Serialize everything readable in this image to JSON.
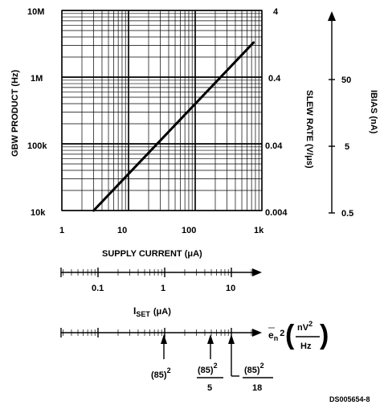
{
  "chart_data": {
    "type": "line",
    "xlabel": "SUPPLY CURRENT (μA)",
    "x_scale": "log",
    "xlim": [
      1,
      1000
    ],
    "x_ticks": [
      "1",
      "10",
      "100",
      "1k"
    ],
    "ylabel_left": "GBW PRODUCT (Hz)",
    "y_scale": "log",
    "ylim": [
      10000,
      10000000
    ],
    "y_ticks": [
      "10k",
      "100k",
      "1M",
      "10M"
    ],
    "ylabel_right": "SLEW RATE (V/μs)",
    "y_right_ticks": [
      "0.004",
      "0.04",
      "0.4",
      "4"
    ],
    "ylabel_far_right": "IBIAS (nA)",
    "y_far_right_ticks": [
      "0.5",
      "5",
      "50"
    ],
    "grid": true,
    "series": [
      {
        "x": [
          3,
          750
        ],
        "y": [
          10000,
          3300000
        ]
      }
    ]
  },
  "iset_axis": {
    "label_main": "I",
    "label_sub": "SET",
    "label_unit": "(μA)",
    "ticks": [
      "0.1",
      "1",
      "10"
    ]
  },
  "noise_axis": {
    "label_prefix": "e",
    "label_sub": "n",
    "label_sup": "2",
    "unit_num": "nV",
    "unit_num_sup": "2",
    "unit_den": "Hz",
    "markers": [
      {
        "num": "(85)",
        "sup": "2",
        "den": ""
      },
      {
        "num": "(85)",
        "sup": "2",
        "den": "5"
      },
      {
        "num": "(85)",
        "sup": "2",
        "den": "18"
      }
    ]
  },
  "doc_id": "DS005654-8"
}
